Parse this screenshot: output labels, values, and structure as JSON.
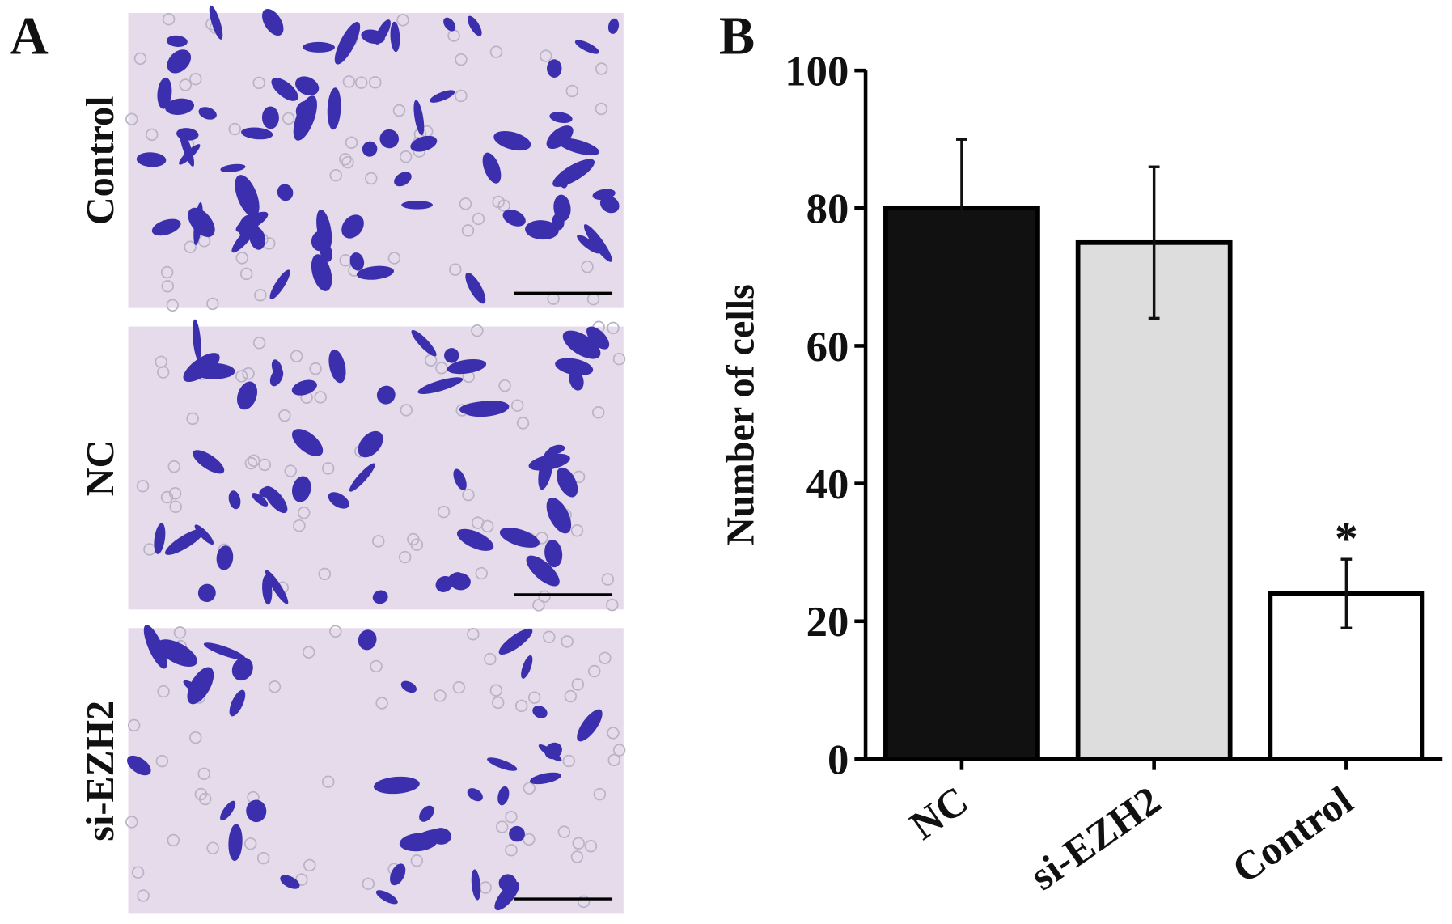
{
  "panel_a": {
    "label": "A",
    "images": [
      {
        "label": "Control"
      },
      {
        "label": "NC"
      },
      {
        "label": "si-EZH2"
      }
    ]
  },
  "chart_data": {
    "type": "bar",
    "panel_label": "B",
    "ylabel": "Number of cells",
    "categories": [
      "NC",
      "si-EZH2",
      "Control"
    ],
    "values": [
      80,
      75,
      24
    ],
    "errors": [
      10,
      11,
      5
    ],
    "colors": [
      "#111111",
      "#dcdddc",
      "#ffffff"
    ],
    "annotations": [
      {
        "category": 2,
        "text": "*"
      }
    ],
    "ylim": [
      0,
      100
    ],
    "yticks": [
      0,
      20,
      40,
      60,
      80,
      100
    ]
  }
}
